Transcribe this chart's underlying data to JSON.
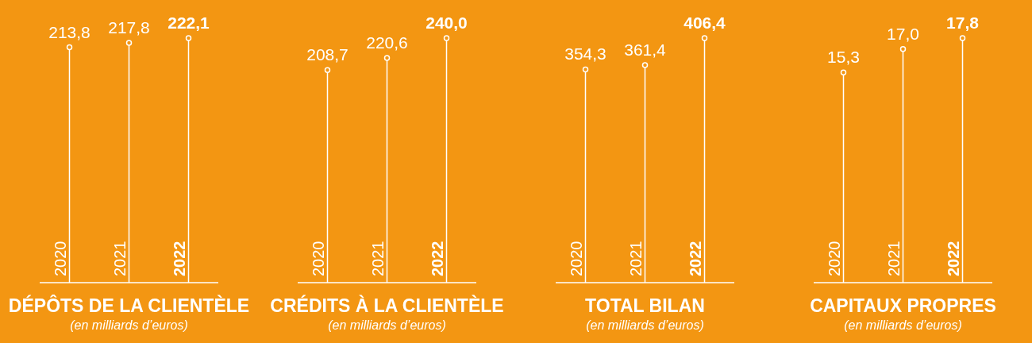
{
  "chart_data": [
    {
      "type": "lollipop",
      "title": "DÉPÔTS DE LA CLIENTÈLE",
      "subtitle": "(en milliards d’euros)",
      "categories": [
        "2020",
        "2021",
        "2022"
      ],
      "values": [
        213.8,
        217.8,
        222.1
      ],
      "value_labels": [
        "213,8",
        "217,8",
        "222,1"
      ],
      "color": "#ffffff"
    },
    {
      "type": "lollipop",
      "title": "CRÉDITS À LA CLIENTÈLE",
      "subtitle": "(en milliards d’euros)",
      "categories": [
        "2020",
        "2021",
        "2022"
      ],
      "values": [
        208.7,
        220.6,
        240.0
      ],
      "value_labels": [
        "208,7",
        "220,6",
        "240,0"
      ],
      "color": "#ffffff"
    },
    {
      "type": "lollipop",
      "title": "TOTAL BILAN",
      "subtitle": "(en milliards d’euros)",
      "categories": [
        "2020",
        "2021",
        "2022"
      ],
      "values": [
        354.3,
        361.4,
        406.4
      ],
      "value_labels": [
        "354,3",
        "361,4",
        "406,4"
      ],
      "color": "#ffffff"
    },
    {
      "type": "lollipop",
      "title": "CAPITAUX PROPRES",
      "subtitle": "(en milliards d’euros)",
      "categories": [
        "2020",
        "2021",
        "2022"
      ],
      "values": [
        15.3,
        17.0,
        17.8
      ],
      "value_labels": [
        "15,3",
        "17,0",
        "17,8"
      ],
      "color": "#ffffff"
    }
  ]
}
